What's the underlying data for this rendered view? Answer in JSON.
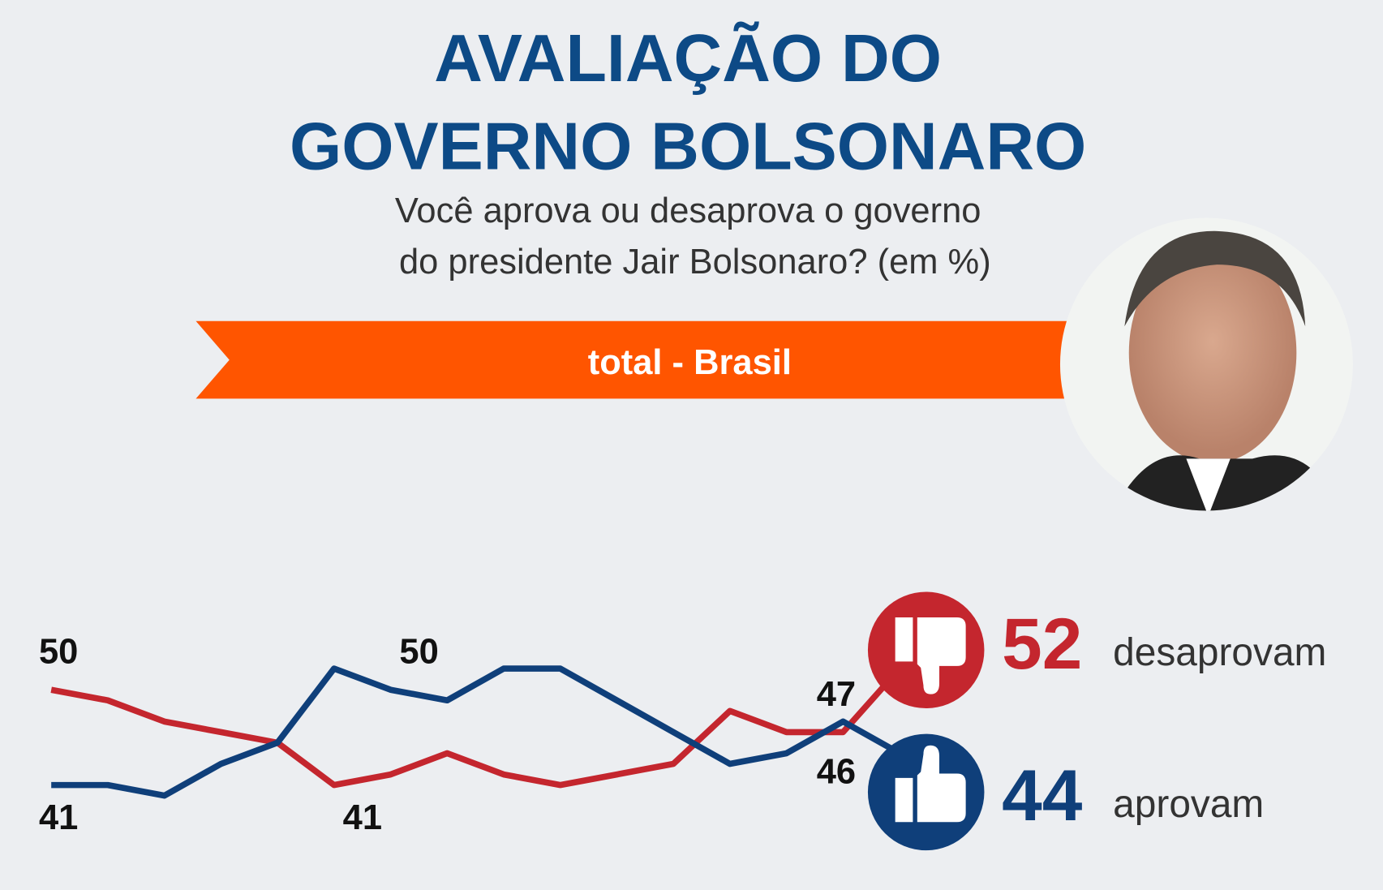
{
  "chart_data": {
    "type": "line",
    "title": [
      "AVALIAÇÃO DO",
      "GOVERNO BOLSONARO"
    ],
    "subtitle": [
      "Você aprova ou desaprova o governo",
      "do presidente Jair Bolsonaro?  (em %)"
    ],
    "banner": "total - Brasil",
    "categories": [
      null,
      null,
      null,
      null,
      null,
      null,
      null,
      null,
      null,
      null,
      null,
      null,
      null,
      null,
      null,
      null
    ],
    "ylim": [
      40,
      52
    ],
    "series": [
      {
        "name": "desaprovam",
        "color": "#c4262e",
        "values": [
          50,
          49,
          47,
          46,
          45,
          41,
          42,
          44,
          42,
          41,
          42,
          43,
          48,
          46,
          46,
          52
        ],
        "value_labels": [
          "50",
          null,
          null,
          null,
          null,
          "41",
          null,
          null,
          null,
          null,
          null,
          null,
          null,
          null,
          "46",
          "52"
        ]
      },
      {
        "name": "aprovam",
        "color": "#0f3f7a",
        "values": [
          41,
          41,
          40,
          43,
          45,
          52,
          50,
          49,
          52,
          52,
          49,
          46,
          43,
          44,
          47,
          44
        ],
        "value_labels": [
          "41",
          null,
          null,
          null,
          null,
          null,
          "50",
          null,
          null,
          null,
          null,
          null,
          null,
          null,
          "47",
          "44"
        ]
      }
    ]
  }
}
